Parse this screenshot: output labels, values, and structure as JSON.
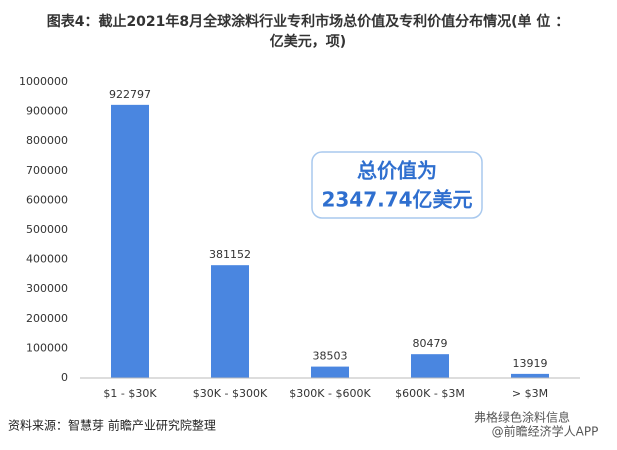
{
  "chart_data": {
    "type": "bar",
    "title": [
      "图表4：截止2021年8月全球涂料行业专利市场总价值及专利价值分布情况(单 位 ：",
      "亿美元，项)"
    ],
    "categories": [
      "$1 - $30K",
      "$30K - $300K",
      "$300K - $600K",
      "$600K - $3M",
      "> $3M"
    ],
    "values": [
      922797,
      381152,
      38503,
      80479,
      13919
    ],
    "color": "#4a86e0",
    "ylim": [
      0,
      1000000
    ],
    "yticks": [
      0,
      100000,
      200000,
      300000,
      400000,
      500000,
      600000,
      700000,
      800000,
      900000,
      1000000
    ],
    "grid": false,
    "annotation": [
      "总价值为",
      "2347.74亿美元"
    ],
    "source": "资料来源：智慧芽 前瞻产业研究院整理",
    "watermarks": [
      "弗格绿色涂料信息",
      "@前瞻经济学人APP"
    ]
  }
}
